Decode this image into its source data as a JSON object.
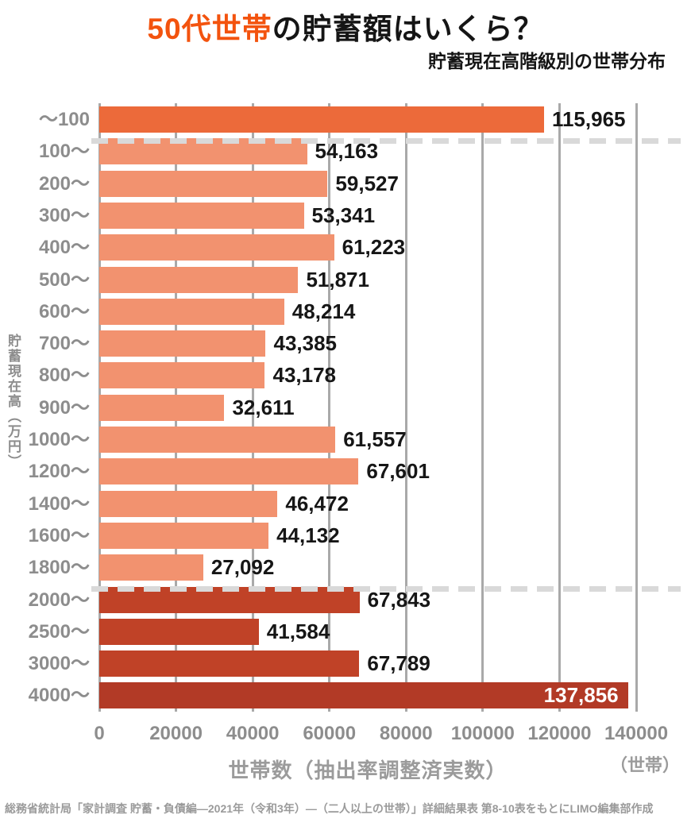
{
  "title": {
    "highlight": "50代世帯",
    "rest": "の貯蓄額はいくら？"
  },
  "subtitle": "貯蓄現在高階級別の世帯分布",
  "y_axis_title": "貯蓄現在高（万円）",
  "x_axis_title": "世帯数（抽出率調整済実数）",
  "unit_note": "（世帯）",
  "caption": "総務省統計局「家計調査 貯蓄・負債編―2021年（令和3年）―（二人以上の世帯）」詳細結果表 第8-10表をもとにLIMO編集部作成",
  "colors": {
    "title_accent": "#f3530e",
    "bar_highlight": "#ec6a3a",
    "bar_base": "#f2926f",
    "bar_dark": "#c04227",
    "bar_darkest": "#b23a26",
    "gridline": "#a9a9a9",
    "separator": "#d9d9d9",
    "axis_text": "#8d8d8d",
    "value_text": "#161616",
    "background": "#ffffff"
  },
  "chart_data": {
    "type": "bar",
    "orientation": "horizontal",
    "title": "50代世帯の貯蓄額はいくら？",
    "xlabel": "世帯数（抽出率調整済実数）",
    "ylabel": "貯蓄現在高（万円）",
    "xlim": [
      0,
      140000
    ],
    "x_ticks": [
      0,
      20000,
      40000,
      60000,
      80000,
      100000,
      120000,
      140000
    ],
    "grid": true,
    "categories": [
      "～100",
      "100～",
      "200～",
      "300～",
      "400～",
      "500～",
      "600～",
      "700～",
      "800～",
      "900～",
      "1000～",
      "1200～",
      "1400～",
      "1600～",
      "1800～",
      "2000～",
      "2500～",
      "3000～",
      "4000～"
    ],
    "values": [
      115965,
      54163,
      59527,
      53341,
      61223,
      51871,
      48214,
      43385,
      43178,
      32611,
      61557,
      67601,
      46472,
      44132,
      27092,
      67843,
      41584,
      67789,
      137856
    ],
    "value_labels": [
      "115,965",
      "54,163",
      "59,527",
      "53,341",
      "61,223",
      "51,871",
      "48,214",
      "43,385",
      "43,178",
      "32,611",
      "61,557",
      "67,601",
      "46,472",
      "44,132",
      "27,092",
      "67,843",
      "41,584",
      "67,789",
      "137,856"
    ],
    "bar_colors": [
      "#ec6a3a",
      "#f2926f",
      "#f2926f",
      "#f2926f",
      "#f2926f",
      "#f2926f",
      "#f2926f",
      "#f2926f",
      "#f2926f",
      "#f2926f",
      "#f2926f",
      "#f2926f",
      "#f2926f",
      "#f2926f",
      "#f2926f",
      "#c04227",
      "#c04227",
      "#c04227",
      "#b23a26"
    ],
    "label_inside_index": 18,
    "separators_after_index": [
      0,
      14
    ]
  }
}
